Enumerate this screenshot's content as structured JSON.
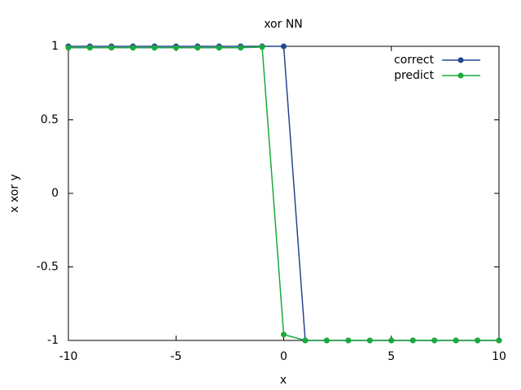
{
  "chart_data": {
    "type": "line",
    "title": "xor NN",
    "x_label": "x",
    "y_label": "x xor y",
    "x": [
      -10,
      -9,
      -8,
      -7,
      -6,
      -5,
      -4,
      -3,
      -2,
      -1,
      0,
      1,
      2,
      3,
      4,
      5,
      6,
      7,
      8,
      9,
      10
    ],
    "series": [
      {
        "name": "correct",
        "color": "#23468f",
        "values": [
          1,
          1,
          1,
          1,
          1,
          1,
          1,
          1,
          1,
          1,
          1,
          -1,
          -1,
          -1,
          -1,
          -1,
          -1,
          -1,
          -1,
          -1,
          -1
        ]
      },
      {
        "name": "predict",
        "color": "#1aaa3a",
        "values": [
          0.99,
          0.99,
          0.99,
          0.99,
          0.99,
          0.99,
          0.99,
          0.99,
          0.99,
          0.995,
          -0.96,
          -1,
          -1,
          -1,
          -1,
          -1,
          -1,
          -1,
          -1,
          -1,
          -1
        ]
      }
    ],
    "xlim": [
      -10,
      10
    ],
    "xticks": [
      -10,
      -5,
      0,
      5,
      10
    ],
    "ylim": [
      -1,
      1
    ],
    "yticks": [
      -1,
      -0.5,
      0,
      0.5,
      1
    ],
    "grid": false,
    "legend": "top right"
  }
}
